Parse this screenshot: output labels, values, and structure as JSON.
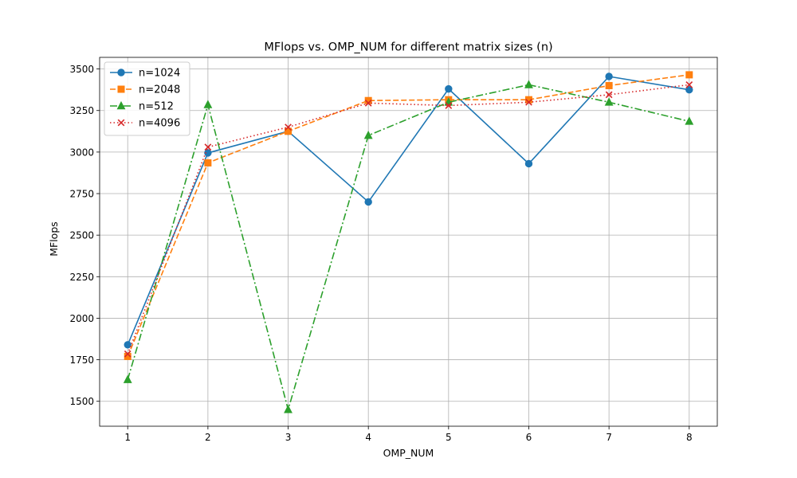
{
  "chart_data": {
    "type": "line",
    "title": "MFlops vs. OMP_NUM for different matrix sizes (n)",
    "xlabel": "OMP_NUM",
    "ylabel": "MFlops",
    "x": [
      1,
      2,
      3,
      4,
      5,
      6,
      7,
      8
    ],
    "xlim": [
      0.65,
      8.35
    ],
    "ylim": [
      1350,
      3570
    ],
    "xticks": [
      1,
      2,
      3,
      4,
      5,
      6,
      7,
      8
    ],
    "yticks": [
      1500,
      1750,
      2000,
      2250,
      2500,
      2750,
      3000,
      3250,
      3500
    ],
    "grid": true,
    "legend": "top-left",
    "series": [
      {
        "name": "n=1024",
        "values": [
          1840,
          2995,
          3125,
          2700,
          3380,
          2930,
          3455,
          3375
        ],
        "color": "#1f77b4",
        "dash": "solid",
        "marker": "circle"
      },
      {
        "name": "n=2048",
        "values": [
          1770,
          2935,
          3125,
          3310,
          3315,
          3315,
          3400,
          3465
        ],
        "color": "#ff7f0e",
        "dash": "dashed",
        "marker": "square"
      },
      {
        "name": "n=512",
        "values": [
          1630,
          3285,
          1450,
          3100,
          3300,
          3405,
          3300,
          3185
        ],
        "color": "#2ca02c",
        "dash": "dashdot",
        "marker": "triangle"
      },
      {
        "name": "n=4096",
        "values": [
          1785,
          3030,
          3150,
          3295,
          3280,
          3300,
          3345,
          3405
        ],
        "color": "#d62728",
        "dash": "dotted",
        "marker": "x"
      }
    ]
  }
}
